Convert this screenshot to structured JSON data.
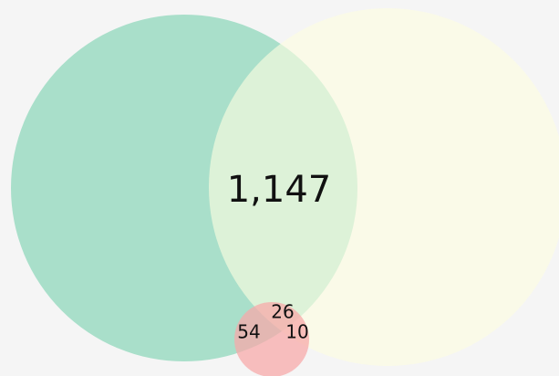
{
  "chart_data": {
    "type": "venn",
    "values": [
      1147,
      26,
      54,
      10
    ],
    "value_labels": [
      "1,147",
      "26",
      "54",
      "10"
    ]
  }
}
